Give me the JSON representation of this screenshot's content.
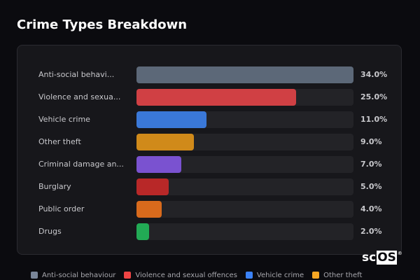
{
  "title": "Crime Types Breakdown",
  "watermark": {
    "prefix": "sc",
    "boxed": "OS",
    "mark": "®"
  },
  "chart_data": {
    "type": "bar",
    "orientation": "horizontal",
    "title": "Crime Types Breakdown",
    "xlabel": "",
    "ylabel": "",
    "value_unit": "%",
    "scale_max": 34.0,
    "grid": false,
    "legend_position": "bottom",
    "categories": [
      "Anti-social behaviour",
      "Violence and sexual offences",
      "Vehicle crime",
      "Other theft",
      "Criminal damage and arson",
      "Burglary",
      "Public order",
      "Drugs"
    ],
    "category_labels_displayed": [
      "Anti-social behavi...",
      "Violence and sexua...",
      "Vehicle crime",
      "Other theft",
      "Criminal damage an...",
      "Burglary",
      "Public order",
      "Drugs"
    ],
    "values": [
      34.0,
      25.0,
      11.0,
      9.0,
      7.0,
      5.0,
      4.0,
      2.0
    ],
    "value_labels": [
      "34.0%",
      "25.0%",
      "11.0%",
      "9.0%",
      "7.0%",
      "5.0%",
      "4.0%",
      "2.0%"
    ],
    "colors": [
      "#5c6878",
      "#d04044",
      "#3a78d8",
      "#d08a1a",
      "#7a52d0",
      "#b82828",
      "#d86a1c",
      "#22aa55"
    ]
  },
  "rows": [
    {
      "label": "Anti-social behavi...",
      "pct": "34.0%",
      "value": 34.0,
      "color": "#5c6878"
    },
    {
      "label": "Violence and sexua...",
      "pct": "25.0%",
      "value": 25.0,
      "color": "#d04044"
    },
    {
      "label": "Vehicle crime",
      "pct": "11.0%",
      "value": 11.0,
      "color": "#3a78d8"
    },
    {
      "label": "Other theft",
      "pct": "9.0%",
      "value": 9.0,
      "color": "#d08a1a"
    },
    {
      "label": "Criminal damage an...",
      "pct": "7.0%",
      "value": 7.0,
      "color": "#7a52d0"
    },
    {
      "label": "Burglary",
      "pct": "5.0%",
      "value": 5.0,
      "color": "#b82828"
    },
    {
      "label": "Public order",
      "pct": "4.0%",
      "value": 4.0,
      "color": "#d86a1c"
    },
    {
      "label": "Drugs",
      "pct": "2.0%",
      "value": 2.0,
      "color": "#22aa55"
    }
  ],
  "legend": [
    {
      "label": "Anti-social behaviour",
      "color": "#7a8699"
    },
    {
      "label": "Violence and sexual offences",
      "color": "#ee4444"
    },
    {
      "label": "Vehicle crime",
      "color": "#3b82f6"
    },
    {
      "label": "Other theft",
      "color": "#f5a623"
    }
  ]
}
